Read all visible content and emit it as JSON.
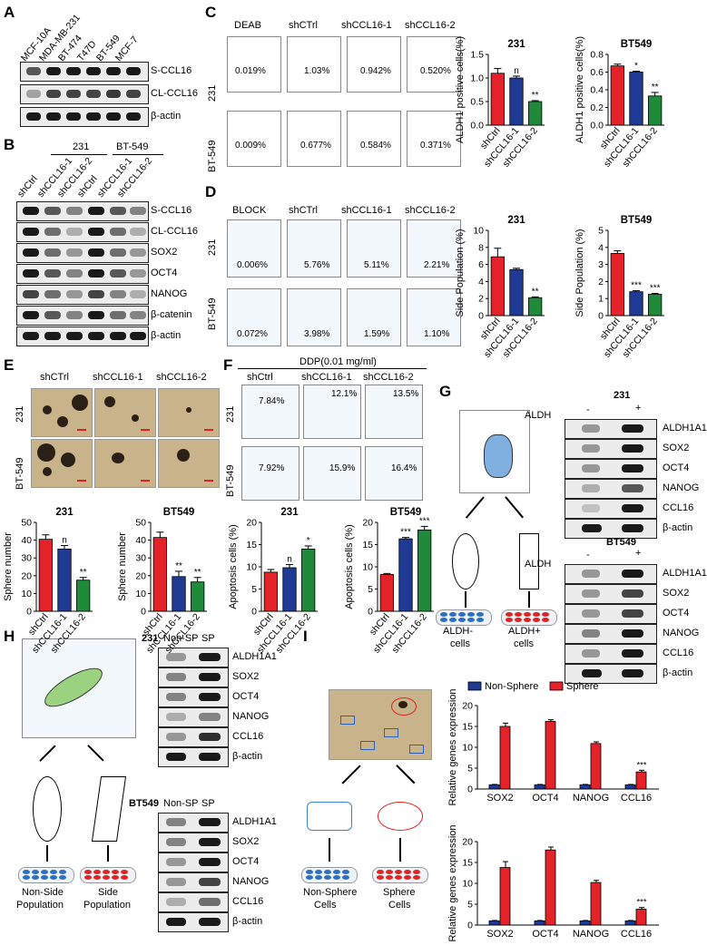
{
  "panels": {
    "A": "A",
    "B": "B",
    "C": "C",
    "D": "D",
    "E": "E",
    "F": "F",
    "G": "G",
    "H": "H",
    "I": "I"
  },
  "panelA": {
    "cell_lines": [
      "MCF-10A",
      "MDA-MB-231",
      "BT-474",
      "T47D",
      "BT-549",
      "MCF-7"
    ],
    "rows": [
      "S-CCL16",
      "CL-CCL16",
      "β-actin"
    ]
  },
  "panelB": {
    "group1": "231",
    "group2": "BT-549",
    "lanes": [
      "shCtrl",
      "shCCL16-1",
      "shCCL16-2",
      "shCtrl",
      "shCCL16-1",
      "shCCL16-2"
    ],
    "rows": [
      "S-CCL16",
      "CL-CCL16",
      "SOX2",
      "OCT4",
      "NANOG",
      "β-catenin",
      "β-actin"
    ]
  },
  "panelC": {
    "col_heads": [
      "DEAB",
      "shCTrl",
      "shCCL16-1",
      "shCCL16-2"
    ],
    "row_labels": [
      "231",
      "BT-549"
    ],
    "pcts": [
      [
        "0.019%",
        "1.03%",
        "0.942%",
        "0.520%"
      ],
      [
        "0.009%",
        "0.677%",
        "0.584%",
        "0.371%"
      ]
    ]
  },
  "panelD": {
    "col_heads": [
      "BLOCK",
      "shCTrl",
      "shCCL16-1",
      "shCCL16-2"
    ],
    "row_labels": [
      "231",
      "BT-549"
    ],
    "pcts": [
      [
        "0.006%",
        "5.76%",
        "5.11%",
        "2.21%"
      ],
      [
        "0.072%",
        "3.98%",
        "1.59%",
        "1.10%"
      ]
    ]
  },
  "panelE": {
    "col_heads": [
      "shCTrl",
      "shCCL16-1",
      "shCCL16-2"
    ],
    "row_labels": [
      "231",
      "BT-549"
    ]
  },
  "panelF": {
    "title": "DDP(0.01 mg/ml)",
    "col_heads": [
      "shCtrl",
      "shCCL16-1",
      "shCCL16-2"
    ],
    "row_labels": [
      "231",
      "BT-549"
    ],
    "pcts": [
      [
        "7.84%",
        "12.1%",
        "13.5%"
      ],
      [
        "7.92%",
        "15.9%",
        "16.4%"
      ]
    ]
  },
  "panelG": {
    "aldh_label": "ALDH",
    "minus": "-",
    "plus": "+",
    "group1": "231",
    "group2": "BT549",
    "rows": [
      "ALDH1A1",
      "SOX2",
      "OCT4",
      "NANOG",
      "CCL16",
      "β-actin"
    ],
    "captions": [
      "ALDH-",
      "cells",
      "ALDH+",
      "cells"
    ]
  },
  "panelH": {
    "group1": "231",
    "group2": "BT549",
    "cols": [
      "Non-SP",
      "SP"
    ],
    "rows": [
      "ALDH1A1",
      "SOX2",
      "OCT4",
      "NANOG",
      "CCL16",
      "β-actin"
    ],
    "captions": [
      "Non-Side",
      "Population",
      "Side",
      "Population"
    ]
  },
  "panelI": {
    "captions": [
      "Non-Sphere",
      "Cells",
      "Sphere",
      "Cells"
    ]
  },
  "colors": {
    "red": "#e3222a",
    "blue": "#1f3a93",
    "green": "#1e8a3a"
  },
  "chart_data": [
    {
      "id": "C-231",
      "type": "bar",
      "title": "231",
      "ylabel": "ALDH1 positive cells(%)",
      "categories": [
        "shCtrl",
        "shCCL16-1",
        "shCCL16-2"
      ],
      "values": [
        1.1,
        1.0,
        0.5
      ],
      "errors": [
        0.1,
        0.04,
        0.02
      ],
      "ylim": [
        0,
        1.5
      ],
      "yticks": [
        "0.0",
        "0.5",
        "1.0",
        "1.5"
      ],
      "annotations": [
        "",
        "n",
        "**"
      ]
    },
    {
      "id": "C-BT549",
      "type": "bar",
      "title": "BT549",
      "ylabel": "ALDH1 positive cells(%)",
      "categories": [
        "shCtrl",
        "shCCL16-1",
        "shCCL16-2"
      ],
      "values": [
        0.67,
        0.6,
        0.33
      ],
      "errors": [
        0.02,
        0.01,
        0.04
      ],
      "ylim": [
        0,
        0.8
      ],
      "yticks": [
        "0.0",
        "0.2",
        "0.4",
        "0.6",
        "0.8"
      ],
      "annotations": [
        "",
        "*",
        "**"
      ]
    },
    {
      "id": "D-231",
      "type": "bar",
      "title": "231",
      "ylabel": "Side Population (%)",
      "categories": [
        "shCtrl",
        "shCCL16-1",
        "shCCL16-2"
      ],
      "values": [
        6.9,
        5.4,
        2.1
      ],
      "errors": [
        1.0,
        0.15,
        0.1
      ],
      "ylim": [
        0,
        10
      ],
      "yticks": [
        "0",
        "2",
        "4",
        "6",
        "8",
        "10"
      ],
      "annotations": [
        "",
        "",
        "**"
      ]
    },
    {
      "id": "D-BT549",
      "type": "bar",
      "title": "BT549",
      "ylabel": "Side Population (%)",
      "categories": [
        "shCtrl",
        "shCCL16-1",
        "shCCL16-2"
      ],
      "values": [
        3.65,
        1.4,
        1.25
      ],
      "errors": [
        0.15,
        0.06,
        0.05
      ],
      "ylim": [
        0,
        5
      ],
      "yticks": [
        "0",
        "1",
        "2",
        "3",
        "4",
        "5"
      ],
      "annotations": [
        "",
        "***",
        "***"
      ]
    },
    {
      "id": "E-231",
      "type": "bar",
      "title": "231",
      "ylabel": "Sphere number",
      "categories": [
        "shCtrl",
        "shCCL16-1",
        "shCCL16-2"
      ],
      "values": [
        40.5,
        35,
        17.5
      ],
      "errors": [
        2.5,
        2,
        1.5
      ],
      "ylim": [
        0,
        50
      ],
      "yticks": [
        "0",
        "10",
        "20",
        "30",
        "40",
        "50"
      ],
      "annotations": [
        "",
        "n",
        "**"
      ]
    },
    {
      "id": "E-BT549",
      "type": "bar",
      "title": "BT549",
      "ylabel": "Sphere number",
      "categories": [
        "shCtrl",
        "shCCL16-1",
        "shCCL16-2"
      ],
      "values": [
        41.5,
        19.5,
        16.5
      ],
      "errors": [
        3,
        3,
        2.5
      ],
      "ylim": [
        0,
        50
      ],
      "yticks": [
        "0",
        "10",
        "20",
        "30",
        "40",
        "50"
      ],
      "annotations": [
        "",
        "**",
        "**"
      ]
    },
    {
      "id": "F-231",
      "type": "bar",
      "title": "231",
      "ylabel": "Apoptosis cells (%)",
      "categories": [
        "shCtrl",
        "shCCL16-1",
        "shCCL16-2"
      ],
      "values": [
        8.8,
        9.8,
        14.0
      ],
      "errors": [
        0.6,
        0.7,
        0.7
      ],
      "ylim": [
        0,
        20
      ],
      "yticks": [
        "0",
        "5",
        "10",
        "15",
        "20"
      ],
      "annotations": [
        "",
        "n",
        "*"
      ]
    },
    {
      "id": "F-BT549",
      "type": "bar",
      "title": "BT549",
      "ylabel": "Apoptosis cells (%)",
      "categories": [
        "shCtrl",
        "shCCL16-1",
        "shCCL16-2"
      ],
      "values": [
        8.3,
        16.3,
        18.3
      ],
      "errors": [
        0.2,
        0.3,
        0.8
      ],
      "ylim": [
        0,
        20
      ],
      "yticks": [
        "0",
        "5",
        "10",
        "15",
        "20"
      ],
      "annotations": [
        "",
        "***",
        "***"
      ]
    },
    {
      "id": "I-top",
      "type": "bar",
      "title": "",
      "ylabel": "Relative genes expression",
      "legend": [
        "Non-Sphere",
        "Sphere"
      ],
      "categories": [
        "SOX2",
        "OCT4",
        "NANOG",
        "CCL16"
      ],
      "series": [
        {
          "name": "Non-Sphere",
          "values": [
            1,
            1,
            1,
            1
          ],
          "errors": [
            0.1,
            0.1,
            0.1,
            0.1
          ]
        },
        {
          "name": "Sphere",
          "values": [
            15,
            16.2,
            10.9,
            4.1
          ],
          "errors": [
            0.8,
            0.4,
            0.4,
            0.4
          ]
        }
      ],
      "ylim": [
        0,
        20
      ],
      "yticks": [
        "0",
        "5",
        "10",
        "15",
        "20"
      ],
      "annotations": [
        "",
        "",
        "",
        "***"
      ]
    },
    {
      "id": "I-bottom",
      "type": "bar",
      "title": "",
      "ylabel": "Relative genes expression",
      "categories": [
        "SOX2",
        "OCT4",
        "NANOG",
        "CCL16"
      ],
      "series": [
        {
          "name": "Non-Sphere",
          "values": [
            1,
            1,
            1,
            1
          ],
          "errors": [
            0.1,
            0.1,
            0.1,
            0.1
          ]
        },
        {
          "name": "Sphere",
          "values": [
            13.8,
            18,
            10.2,
            3.8
          ],
          "errors": [
            1.4,
            0.7,
            0.5,
            0.4
          ]
        }
      ],
      "ylim": [
        0,
        20
      ],
      "yticks": [
        "0",
        "5",
        "10",
        "15",
        "20"
      ],
      "annotations": [
        "",
        "",
        "",
        "***"
      ]
    }
  ]
}
